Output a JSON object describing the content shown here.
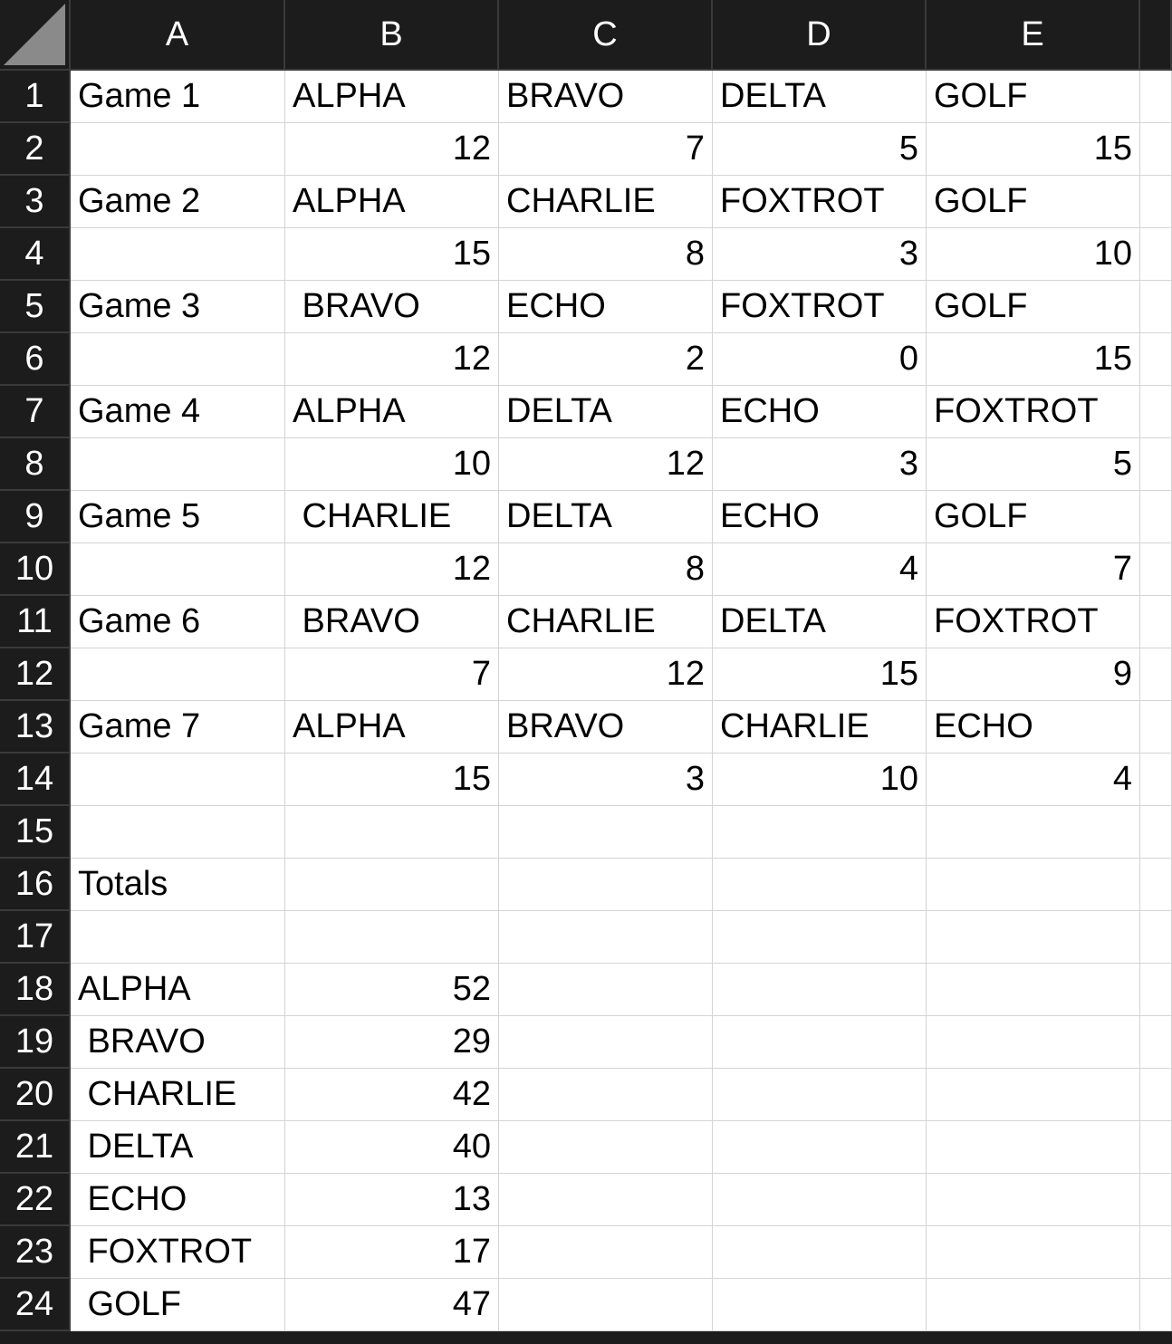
{
  "columns": [
    "A",
    "B",
    "C",
    "D",
    "E",
    ""
  ],
  "row_numbers": [
    "1",
    "2",
    "3",
    "4",
    "5",
    "6",
    "7",
    "8",
    "9",
    "10",
    "11",
    "12",
    "13",
    "14",
    "15",
    "16",
    "17",
    "18",
    "19",
    "20",
    "21",
    "22",
    "23",
    "24"
  ],
  "rows": [
    [
      "Game 1",
      "ALPHA",
      "BRAVO",
      "DELTA",
      "GOLF",
      ""
    ],
    [
      "",
      "12",
      "7",
      "5",
      "15",
      ""
    ],
    [
      "Game 2",
      "ALPHA",
      "CHARLIE",
      "FOXTROT",
      "GOLF",
      ""
    ],
    [
      "",
      "15",
      "8",
      "3",
      "10",
      ""
    ],
    [
      "Game 3",
      " BRAVO",
      "ECHO",
      "FOXTROT",
      "GOLF",
      ""
    ],
    [
      "",
      "12",
      "2",
      "0",
      "15",
      ""
    ],
    [
      "Game 4",
      "ALPHA",
      "DELTA",
      "ECHO",
      "FOXTROT",
      ""
    ],
    [
      "",
      "10",
      "12",
      "3",
      "5",
      ""
    ],
    [
      "Game 5",
      " CHARLIE",
      "DELTA",
      "ECHO",
      "GOLF",
      ""
    ],
    [
      "",
      "12",
      "8",
      "4",
      "7",
      ""
    ],
    [
      "Game 6",
      " BRAVO",
      "CHARLIE",
      "DELTA",
      "FOXTROT",
      ""
    ],
    [
      "",
      "7",
      "12",
      "15",
      "9",
      ""
    ],
    [
      "Game 7",
      "ALPHA",
      "BRAVO",
      "CHARLIE",
      "ECHO",
      ""
    ],
    [
      "",
      "15",
      "3",
      "10",
      "4",
      ""
    ],
    [
      "",
      "",
      "",
      "",
      "",
      ""
    ],
    [
      "Totals",
      "",
      "",
      "",
      "",
      ""
    ],
    [
      "",
      "",
      "",
      "",
      "",
      ""
    ],
    [
      "ALPHA",
      "52",
      "",
      "",
      "",
      ""
    ],
    [
      " BRAVO",
      "29",
      "",
      "",
      "",
      ""
    ],
    [
      " CHARLIE",
      "42",
      "",
      "",
      "",
      ""
    ],
    [
      " DELTA",
      "40",
      "",
      "",
      "",
      ""
    ],
    [
      " ECHO",
      "13",
      "",
      "",
      "",
      ""
    ],
    [
      " FOXTROT",
      "17",
      "",
      "",
      "",
      ""
    ],
    [
      " GOLF",
      "47",
      "",
      "",
      "",
      ""
    ]
  ],
  "numeric_rows": [
    1,
    3,
    5,
    7,
    9,
    11,
    13
  ],
  "totals_value_rows": [
    17,
    18,
    19,
    20,
    21,
    22,
    23
  ]
}
